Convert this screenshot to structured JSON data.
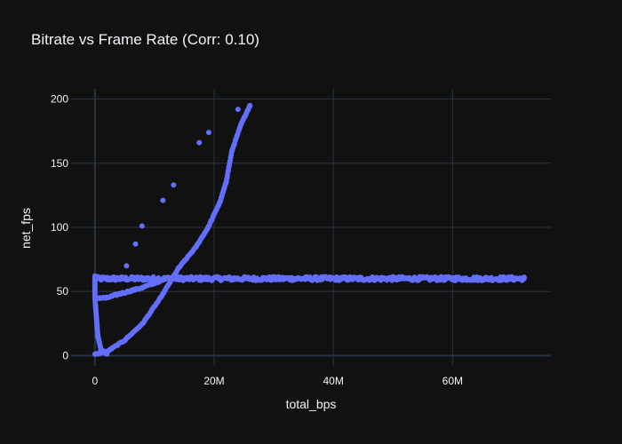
{
  "chart_data": {
    "type": "scatter",
    "title": "Bitrate vs Frame Rate (Corr: 0.10)",
    "xlabel": "total_bps",
    "ylabel": "net_fps",
    "xlim": [
      -4000000,
      76500000
    ],
    "ylim": [
      -8,
      208
    ],
    "x_ticks": [
      0,
      20000000,
      40000000,
      60000000
    ],
    "x_tick_labels": [
      "0",
      "20M",
      "40M",
      "60M"
    ],
    "y_ticks": [
      0,
      50,
      100,
      150,
      200
    ],
    "y_tick_labels": [
      "0",
      "50",
      "100",
      "150",
      "200"
    ],
    "grid": true,
    "marker_color": "#636efa",
    "background_color": "#111111",
    "grid_color": "#283442",
    "series": [
      {
        "name": "",
        "segments": [
          {
            "from": [
              0,
              60
            ],
            "to": [
              72000000,
              60
            ],
            "count": 420,
            "jitter": 1.5
          },
          {
            "from": [
              0,
              45
            ],
            "to": [
              2000000,
              45
            ],
            "count": 12,
            "jitter": 0.6
          },
          {
            "from": [
              2000000,
              45
            ],
            "to": [
              4000000,
              48
            ],
            "count": 12,
            "jitter": 0.6
          },
          {
            "from": [
              4000000,
              48
            ],
            "to": [
              8000000,
              53
            ],
            "count": 20,
            "jitter": 0.6
          },
          {
            "from": [
              8000000,
              53
            ],
            "to": [
              12000000,
              60
            ],
            "count": 20,
            "jitter": 0.6
          },
          {
            "from": [
              0,
              62
            ],
            "to": [
              0,
              45
            ],
            "count": 14,
            "jitter": 0.2
          },
          {
            "from": [
              0,
              45
            ],
            "to": [
              500000,
              15
            ],
            "count": 18,
            "jitter": 0.2
          },
          {
            "from": [
              500000,
              15
            ],
            "to": [
              1000000,
              5
            ],
            "count": 10,
            "jitter": 0.2
          },
          {
            "from": [
              1000000,
              5
            ],
            "to": [
              2000000,
              1
            ],
            "count": 8,
            "jitter": 0.2
          },
          {
            "from": [
              0,
              1
            ],
            "to": [
              2000000,
              3
            ],
            "count": 10,
            "jitter": 0.3
          },
          {
            "from": [
              2000000,
              3
            ],
            "to": [
              5000000,
              12
            ],
            "count": 16,
            "jitter": 0.4
          },
          {
            "from": [
              5000000,
              12
            ],
            "to": [
              8000000,
              25
            ],
            "count": 16,
            "jitter": 0.4
          },
          {
            "from": [
              8000000,
              25
            ],
            "to": [
              11000000,
              45
            ],
            "count": 18,
            "jitter": 0.4
          },
          {
            "from": [
              11000000,
              45
            ],
            "to": [
              14000000,
              68
            ],
            "count": 18,
            "jitter": 0.4
          },
          {
            "from": [
              14000000,
              68
            ],
            "to": [
              17000000,
              85
            ],
            "count": 16,
            "jitter": 0.4
          },
          {
            "from": [
              17000000,
              85
            ],
            "to": [
              19000000,
              100
            ],
            "count": 14,
            "jitter": 0.4
          },
          {
            "from": [
              19000000,
              100
            ],
            "to": [
              21000000,
              120
            ],
            "count": 14,
            "jitter": 0.4
          },
          {
            "from": [
              21000000,
              120
            ],
            "to": [
              22000000,
              135
            ],
            "count": 12,
            "jitter": 0.4
          },
          {
            "from": [
              22000000,
              135
            ],
            "to": [
              23000000,
              160
            ],
            "count": 14,
            "jitter": 0.4
          },
          {
            "from": [
              23000000,
              160
            ],
            "to": [
              24500000,
              180
            ],
            "count": 12,
            "jitter": 0.4
          },
          {
            "from": [
              24500000,
              180
            ],
            "to": [
              26000000,
              195
            ],
            "count": 12,
            "jitter": 0.4
          }
        ],
        "points": [
          [
            5300000,
            70
          ],
          [
            6800000,
            87
          ],
          [
            7900000,
            101
          ],
          [
            11400000,
            121
          ],
          [
            13200000,
            133
          ],
          [
            17500000,
            166
          ],
          [
            19100000,
            174
          ],
          [
            24000000,
            192
          ],
          [
            72000000,
            60
          ],
          [
            26000000,
            195
          ]
        ]
      }
    ]
  }
}
